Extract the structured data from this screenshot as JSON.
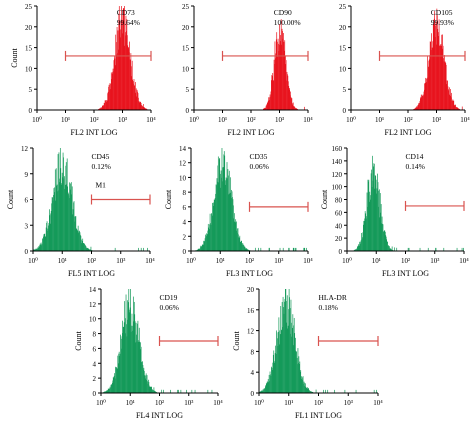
{
  "figure": {
    "axis_color": "#000000",
    "marker_color": "#d9534f",
    "red_fill": "#e8141e",
    "green_fill": "#159a5a"
  },
  "chart_data": [
    {
      "type": "histogram",
      "marker": "CD73",
      "percent": "99.64%",
      "xlabel": "FL2 INT LOG",
      "ylabel": "Count",
      "color": "red",
      "ylim": [
        0,
        25
      ],
      "yticks": [
        0,
        5,
        10,
        15,
        20,
        25
      ],
      "xlog": true,
      "xlim": [
        1,
        10000
      ],
      "xticks": [
        "10⁰",
        "10¹",
        "10²",
        "10³",
        "10⁴"
      ],
      "gate": {
        "label": "",
        "range": [
          10,
          10000
        ],
        "level": 13
      },
      "peak_at": 1000,
      "peak_count": 25,
      "spread_decades": 0.28
    },
    {
      "type": "histogram",
      "marker": "CD90",
      "percent": "100.00%",
      "xlabel": "FL2 INT LOG",
      "ylabel": "",
      "color": "red",
      "ylim": [
        0,
        25
      ],
      "yticks": [
        0,
        5,
        10,
        15,
        20,
        25
      ],
      "xlog": true,
      "xlim": [
        1,
        10000
      ],
      "xticks": [
        "10⁰",
        "10¹",
        "10²",
        "10³",
        "10⁴"
      ],
      "gate": {
        "label": "",
        "range": [
          10,
          10000
        ],
        "level": 13
      },
      "peak_at": 1050,
      "peak_count": 23,
      "spread_decades": 0.2
    },
    {
      "type": "histogram",
      "marker": "CD105",
      "percent": "99.93%",
      "xlabel": "FL2 INT LOG",
      "ylabel": "",
      "color": "red",
      "ylim": [
        0,
        25
      ],
      "yticks": [
        0,
        5,
        10,
        15,
        20,
        25
      ],
      "xlog": true,
      "xlim": [
        1,
        10000
      ],
      "xticks": [
        "10⁰",
        "10¹",
        "10²",
        "10³",
        "10⁴"
      ],
      "gate": {
        "label": "",
        "range": [
          10,
          10000
        ],
        "level": 13
      },
      "peak_at": 1000,
      "peak_count": 25,
      "spread_decades": 0.27
    },
    {
      "type": "histogram",
      "marker": "CD45",
      "percent": "0.12%",
      "xlabel": "FL5 INT LOG",
      "ylabel": "Count",
      "color": "green",
      "ylim": [
        0,
        12
      ],
      "yticks": [
        0,
        3,
        6,
        9,
        12
      ],
      "xlog": true,
      "xlim": [
        1,
        10000
      ],
      "xticks": [
        "10⁰",
        "10¹",
        "10²",
        "10³",
        "10⁴"
      ],
      "gate": {
        "label": "M1",
        "range": [
          100,
          10000
        ],
        "level": 6
      },
      "peak_at": 10,
      "peak_count": 12,
      "spread_decades": 0.33
    },
    {
      "type": "histogram",
      "marker": "CD35",
      "percent": "0.06%",
      "xlabel": "FL3 INT LOG",
      "ylabel": "Count",
      "color": "green",
      "ylim": [
        0,
        14
      ],
      "yticks": [
        0,
        2,
        4,
        6,
        8,
        10,
        12,
        14
      ],
      "xlog": true,
      "xlim": [
        1,
        10000
      ],
      "xticks": [
        "10⁰",
        "10¹",
        "10²",
        "10³",
        "10⁴"
      ],
      "gate": {
        "label": "",
        "range": [
          100,
          10000
        ],
        "level": 6
      },
      "peak_at": 12,
      "peak_count": 14,
      "spread_decades": 0.3
    },
    {
      "type": "histogram",
      "marker": "CD14",
      "percent": "0.14%",
      "xlabel": "FL3 INT LOG",
      "ylabel": "Count",
      "color": "green",
      "ylim": [
        0,
        160
      ],
      "yticks": [
        0,
        20,
        40,
        60,
        80,
        100,
        120,
        140,
        160
      ],
      "xlog": true,
      "xlim": [
        1,
        10000
      ],
      "xticks": [
        "10⁰",
        "10¹",
        "10²",
        "10³",
        "10⁴"
      ],
      "gate": {
        "label": "",
        "range": [
          100,
          10000
        ],
        "level": 70
      },
      "peak_at": 8,
      "peak_count": 150,
      "spread_decades": 0.22
    },
    {
      "type": "histogram",
      "marker": "CD19",
      "percent": "0.06%",
      "xlabel": "FL4 INT LOG",
      "ylabel": "Count",
      "color": "green",
      "ylim": [
        0,
        14
      ],
      "yticks": [
        0,
        2,
        4,
        6,
        8,
        10,
        12,
        14
      ],
      "xlog": true,
      "xlim": [
        1,
        10000
      ],
      "xticks": [
        "10⁰",
        "10¹",
        "10²",
        "10³",
        "10⁴"
      ],
      "gate": {
        "label": "",
        "range": [
          100,
          10000
        ],
        "level": 7
      },
      "peak_at": 10,
      "peak_count": 14,
      "spread_decades": 0.3
    },
    {
      "type": "histogram",
      "marker": "HLA-DR",
      "percent": "0.18%",
      "xlabel": "FL1 INT LOG",
      "ylabel": "Count",
      "color": "green",
      "ylim": [
        0,
        20
      ],
      "yticks": [
        0,
        4,
        8,
        12,
        16,
        20
      ],
      "xlog": true,
      "xlim": [
        1,
        10000
      ],
      "xticks": [
        "10⁰",
        "10¹",
        "10²",
        "10³",
        "10⁴"
      ],
      "gate": {
        "label": "",
        "range": [
          100,
          10000
        ],
        "level": 10
      },
      "peak_at": 8,
      "peak_count": 20,
      "spread_decades": 0.3
    }
  ]
}
